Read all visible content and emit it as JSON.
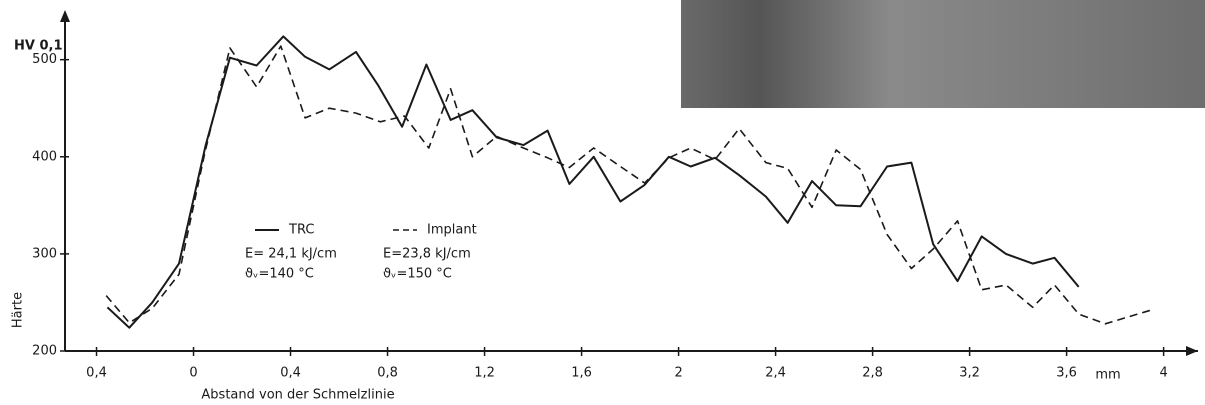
{
  "chart_data": {
    "type": "line",
    "x_label": "Abstand von der Schmelzlinie",
    "x_unit": "mm",
    "y_label": "Härte",
    "y_unit": "HV 0,1",
    "xlim": [
      -0.53,
      4.15
    ],
    "ylim": [
      200,
      546
    ],
    "xticks": [
      {
        "value": -0.4,
        "label": "0,4"
      },
      0,
      {
        "value": 0.4,
        "label": "0,4"
      },
      {
        "value": 0.8,
        "label": "0,8"
      },
      {
        "value": 1.2,
        "label": "1,2"
      },
      {
        "value": 1.6,
        "label": "1,6"
      },
      2,
      {
        "value": 2.4,
        "label": "2,4"
      },
      {
        "value": 2.8,
        "label": "2,8"
      },
      {
        "value": 3.2,
        "label": "3,2"
      },
      {
        "value": 3.6,
        "label": "3,6"
      },
      4
    ],
    "yticks": [
      200,
      300,
      400,
      500
    ],
    "grid": false,
    "series": [
      {
        "name": "TRC",
        "color": "#1a1a1a",
        "dashed": false,
        "notes": [
          "E= 24,1 kJ/cm",
          "ϑᵥ=140 °C"
        ],
        "x": [
          -0.355,
          -0.265,
          -0.17,
          -0.06,
          0.05,
          0.15,
          0.26,
          0.37,
          0.46,
          0.56,
          0.67,
          0.76,
          0.86,
          0.96,
          1.06,
          1.15,
          1.25,
          1.36,
          1.46,
          1.55,
          1.65,
          1.76,
          1.86,
          1.96,
          2.05,
          2.15,
          2.25,
          2.36,
          2.45,
          2.55,
          2.65,
          2.75,
          2.86,
          2.96,
          3.05,
          3.15,
          3.25,
          3.35,
          3.46,
          3.55,
          3.65
        ],
        "values": [
          245,
          224,
          250,
          290,
          412,
          502,
          494,
          524,
          503,
          490,
          508,
          474,
          431,
          495,
          438,
          448,
          420,
          412,
          427,
          372,
          400,
          354,
          371,
          400,
          390,
          399,
          381,
          359,
          332,
          375,
          350,
          349,
          390,
          394,
          310,
          272,
          318,
          300,
          290,
          296,
          266
        ]
      },
      {
        "name": "Implant",
        "color": "#1a1a1a",
        "dashed": true,
        "notes": [
          "E=23,8 kJ/cm",
          "ϑᵥ=150 °C"
        ],
        "x": [
          -0.36,
          -0.265,
          -0.17,
          -0.06,
          0.045,
          0.15,
          0.26,
          0.36,
          0.46,
          0.56,
          0.67,
          0.77,
          0.87,
          0.97,
          1.06,
          1.15,
          1.25,
          1.36,
          1.46,
          1.55,
          1.65,
          1.76,
          1.86,
          1.96,
          2.05,
          2.15,
          2.25,
          2.36,
          2.45,
          2.55,
          2.65,
          2.75,
          2.86,
          2.96,
          3.05,
          3.15,
          3.25,
          3.35,
          3.46,
          3.55,
          3.65,
          3.76,
          3.96
        ],
        "values": [
          257,
          229,
          244,
          279,
          402,
          512,
          472,
          514,
          440,
          450,
          445,
          436,
          442,
          409,
          470,
          400,
          421,
          409,
          399,
          389,
          409,
          390,
          373,
          399,
          409,
          397,
          429,
          394,
          388,
          348,
          407,
          387,
          320,
          285,
          305,
          334,
          263,
          268,
          245,
          268,
          238,
          228,
          243
        ]
      }
    ]
  }
}
